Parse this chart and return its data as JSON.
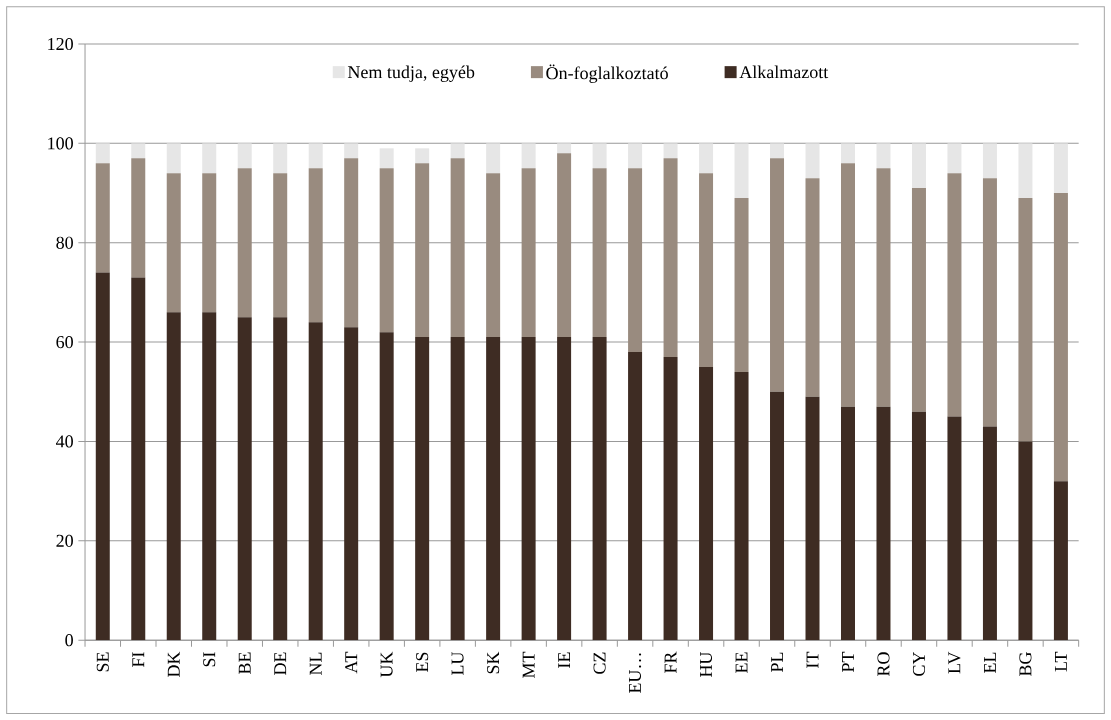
{
  "chart_data": {
    "type": "bar",
    "stacked": true,
    "categories": [
      "SE",
      "FI",
      "DK",
      "SI",
      "BE",
      "DE",
      "NL",
      "AT",
      "UK",
      "ES",
      "LU",
      "SK",
      "MT",
      "IE",
      "CZ",
      "EU…",
      "FR",
      "HU",
      "EE",
      "PL",
      "IT",
      "PT",
      "RO",
      "CY",
      "LV",
      "EL",
      "BG",
      "LT"
    ],
    "series": [
      {
        "name": "Alkalmazott",
        "color": "#3e2c23",
        "values": [
          74,
          73,
          66,
          66,
          65,
          65,
          64,
          63,
          62,
          61,
          61,
          61,
          61,
          61,
          61,
          58,
          57,
          55,
          54,
          50,
          49,
          47,
          47,
          46,
          45,
          43,
          40,
          32
        ]
      },
      {
        "name": "Ön-foglalkoztató",
        "color": "#998b7f",
        "values": [
          22,
          24,
          28,
          28,
          30,
          29,
          31,
          34,
          33,
          35,
          36,
          33,
          34,
          37,
          34,
          37,
          40,
          39,
          35,
          47,
          44,
          49,
          48,
          45,
          49,
          50,
          49,
          58
        ]
      },
      {
        "name": "Nem tudja, egyéb",
        "color": "#e6e6e6",
        "values": [
          4,
          3,
          6,
          6,
          5,
          6,
          5,
          3,
          4,
          3,
          3,
          6,
          5,
          2,
          5,
          5,
          3,
          6,
          11,
          3,
          7,
          4,
          5,
          9,
          6,
          7,
          11,
          10
        ]
      }
    ],
    "ylim": [
      0,
      120
    ],
    "yticks": [
      0,
      20,
      40,
      60,
      80,
      100,
      120
    ],
    "grid": "y",
    "legend": "top"
  }
}
